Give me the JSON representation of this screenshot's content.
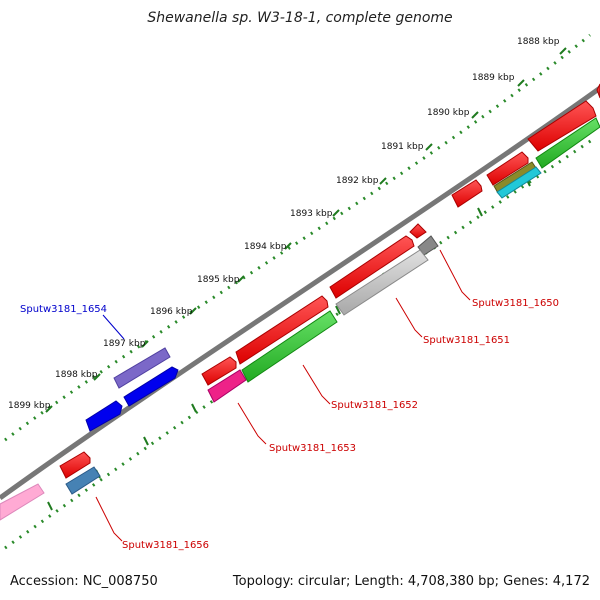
{
  "title": "Shewanella sp. W3-18-1, complete genome",
  "accession": "Accession: NC_008750",
  "summary": "Topology: circular; Length: 4,708,380 bp; Genes: 4,172",
  "ticks": [
    {
      "label": "1888 kbp"
    },
    {
      "label": "1889 kbp"
    },
    {
      "label": "1890 kbp"
    },
    {
      "label": "1891 kbp"
    },
    {
      "label": "1892 kbp"
    },
    {
      "label": "1893 kbp"
    },
    {
      "label": "1894 kbp"
    },
    {
      "label": "1895 kbp"
    },
    {
      "label": "1896 kbp"
    },
    {
      "label": "1897 kbp"
    },
    {
      "label": "1898 kbp"
    },
    {
      "label": "1899 kbp"
    }
  ],
  "gene_labels": [
    {
      "text": "Sputw3181_1654",
      "color": "#0000cc"
    },
    {
      "text": "Sputw3181_1650",
      "color": "#cc0000"
    },
    {
      "text": "Sputw3181_1651",
      "color": "#cc0000"
    },
    {
      "text": "Sputw3181_1652",
      "color": "#cc0000"
    },
    {
      "text": "Sputw3181_1653",
      "color": "#cc0000"
    },
    {
      "text": "Sputw3181_1656",
      "color": "#cc0000"
    }
  ]
}
